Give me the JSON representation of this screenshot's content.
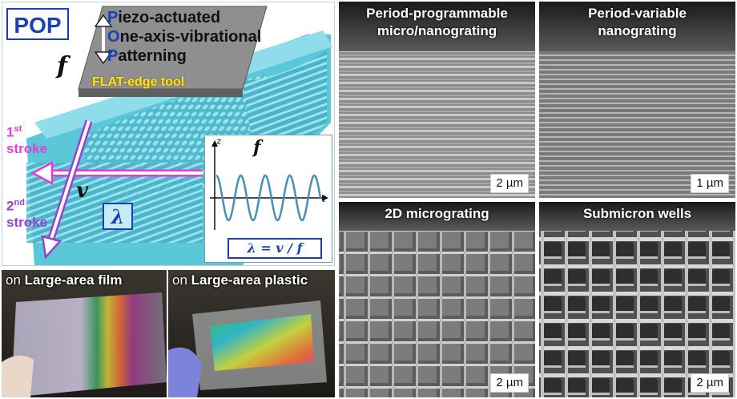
{
  "schematic": {
    "logo": "POP",
    "acronym": [
      {
        "cap": "P",
        "rest": "iezo-actuated"
      },
      {
        "cap": "O",
        "rest": "ne-axis-vibrational"
      },
      {
        "cap": "P",
        "rest": "atterning"
      }
    ],
    "frequency_symbol": "f",
    "tool_label": "FLAT-edge tool",
    "first_stroke": {
      "num": "1",
      "sup": "st",
      "word": "stroke"
    },
    "second_stroke": {
      "num": "2",
      "sup": "nd",
      "word": "stroke"
    },
    "velocity_symbol": "v",
    "wavelength_symbol": "λ",
    "inset": {
      "axis_z": "z",
      "axis_t": "t",
      "f_symbol": "f",
      "formula": "λ = v / f"
    },
    "colors": {
      "substrate": "#5ac8d8",
      "tool": "#8f8f8f",
      "stroke1": "#e23fd2",
      "stroke2": "#9b3fd0",
      "accent": "#1a3fb8"
    }
  },
  "photos": [
    {
      "prefix": "on ",
      "bold": "Large-area film"
    },
    {
      "prefix": "on ",
      "bold": "Large-area plastic"
    }
  ],
  "sem_panels": [
    {
      "title_line1": "Period-programmable",
      "title_line2": "micro/nanograting",
      "scale": "2 µm"
    },
    {
      "title_line1": "Period-variable",
      "title_line2": "nanograting",
      "scale": "1 µm"
    },
    {
      "title_line1": "2D micrograting",
      "title_line2": "",
      "scale": "2 µm"
    },
    {
      "title_line1": "Submicron wells",
      "title_line2": "",
      "scale": "2 µm"
    }
  ]
}
